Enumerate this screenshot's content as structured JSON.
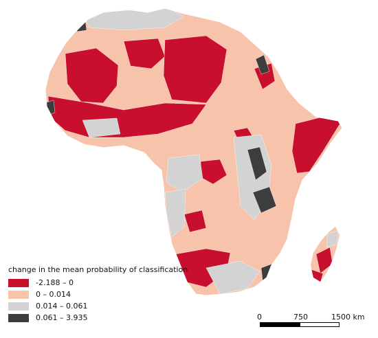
{
  "map": {
    "colors": {
      "class1": "#c8102e",
      "class2": "#f7c3aa",
      "class3": "#d3d3d3",
      "class4": "#3d3d3d",
      "outline": "#ffffff"
    }
  },
  "legend": {
    "title": "change in the mean probability of classification",
    "items": [
      {
        "label": "-2.188 – 0",
        "color": "#c8102e"
      },
      {
        "label": "0 – 0.014",
        "color": "#f7c3aa"
      },
      {
        "label": "0.014 – 0.061",
        "color": "#d3d3d3"
      },
      {
        "label": "0.061 – 3.935",
        "color": "#3d3d3d"
      }
    ]
  },
  "scalebar": {
    "labels": [
      "0",
      "750",
      "1500 km"
    ]
  }
}
